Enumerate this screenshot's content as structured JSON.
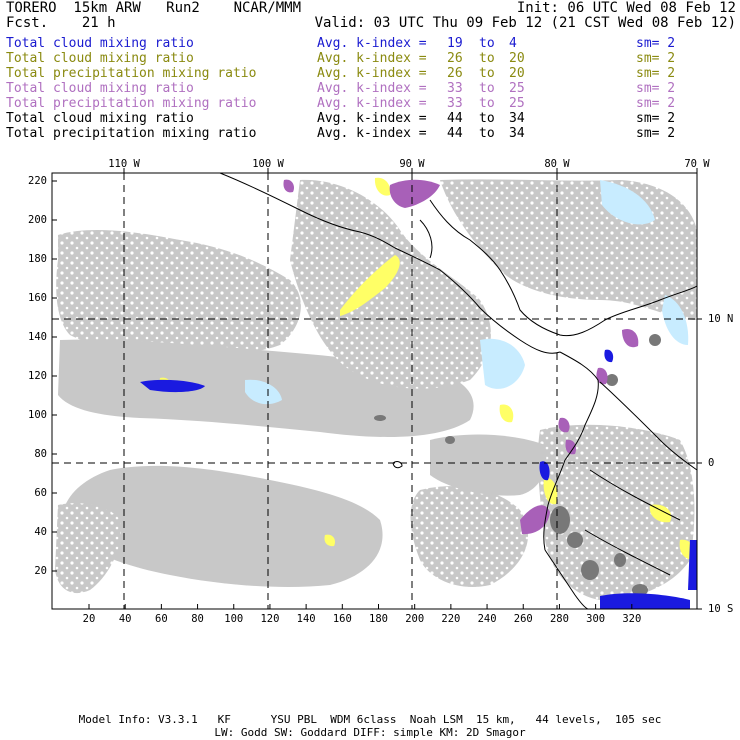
{
  "header": {
    "left_top": "TORERO  15km ARW   Run2    NCAR/MMM",
    "left_bottom": "Fcst.    21 h",
    "init": "Init: 06 UTC Wed 08 Feb 12",
    "valid": "Valid: 03 UTC Thu 09 Feb 12 (21 CST Wed 08 Feb 12)"
  },
  "legend_rows": [
    {
      "field": "Total cloud mixing ratio",
      "k_label": "Avg. k-index =",
      "k1": "19",
      "to": "to",
      "k2": "4",
      "sm": "sm= 2",
      "color": "#1a1ad0"
    },
    {
      "field": "Total cloud mixing ratio",
      "k_label": "Avg. k-index =",
      "k1": "26",
      "to": "to",
      "k2": "20",
      "sm": "sm= 2",
      "color": "#8a8a10"
    },
    {
      "field": "Total precipitation mixing ratio",
      "k_label": "Avg. k-index =",
      "k1": "26",
      "to": "to",
      "k2": "20",
      "sm": "sm= 2",
      "color": "#8a8a10"
    },
    {
      "field": "Total cloud mixing ratio",
      "k_label": "Avg. k-index =",
      "k1": "33",
      "to": "to",
      "k2": "25",
      "sm": "sm= 2",
      "color": "#b070c0"
    },
    {
      "field": "Total precipitation mixing ratio",
      "k_label": "Avg. k-index =",
      "k1": "33",
      "to": "to",
      "k2": "25",
      "sm": "sm= 2",
      "color": "#b070c0"
    },
    {
      "field": "Total cloud mixing ratio",
      "k_label": "Avg. k-index =",
      "k1": "44",
      "to": "to",
      "k2": "34",
      "sm": "sm= 2",
      "color": "#000000"
    },
    {
      "field": "Total precipitation mixing ratio",
      "k_label": "Avg. k-index =",
      "k1": "44",
      "to": "to",
      "k2": "34",
      "sm": "sm= 2",
      "color": "#000000"
    }
  ],
  "map": {
    "lon_labels": [
      "110 W",
      "100 W",
      "90 W",
      "80 W",
      "70 W"
    ],
    "lat_labels": [
      "10 N",
      "0",
      "10 S"
    ],
    "y_ticks": [
      "220",
      "200",
      "180",
      "160",
      "140",
      "120",
      "100",
      "80",
      "60",
      "40",
      "20"
    ],
    "x_ticks": [
      "20",
      "40",
      "60",
      "80",
      "100",
      "120",
      "140",
      "160",
      "180",
      "200",
      "220",
      "240",
      "260",
      "280",
      "300",
      "320"
    ],
    "colors": {
      "cloud_gray": "#c8c8c8",
      "dark_gray": "#787878",
      "yellow": "#ffff66",
      "purple": "#a860b8",
      "blue": "#1a1ae0",
      "light_blue": "#c8ecff",
      "coast": "#000000"
    }
  },
  "footer": {
    "line1": "Model Info: V3.3.1   KF      YSU PBL  WDM 6class  Noah LSM  15 km,   44 levels,  105 sec",
    "line2": "LW: Godd SW: Goddard DIFF: simple KM: 2D Smagor"
  }
}
